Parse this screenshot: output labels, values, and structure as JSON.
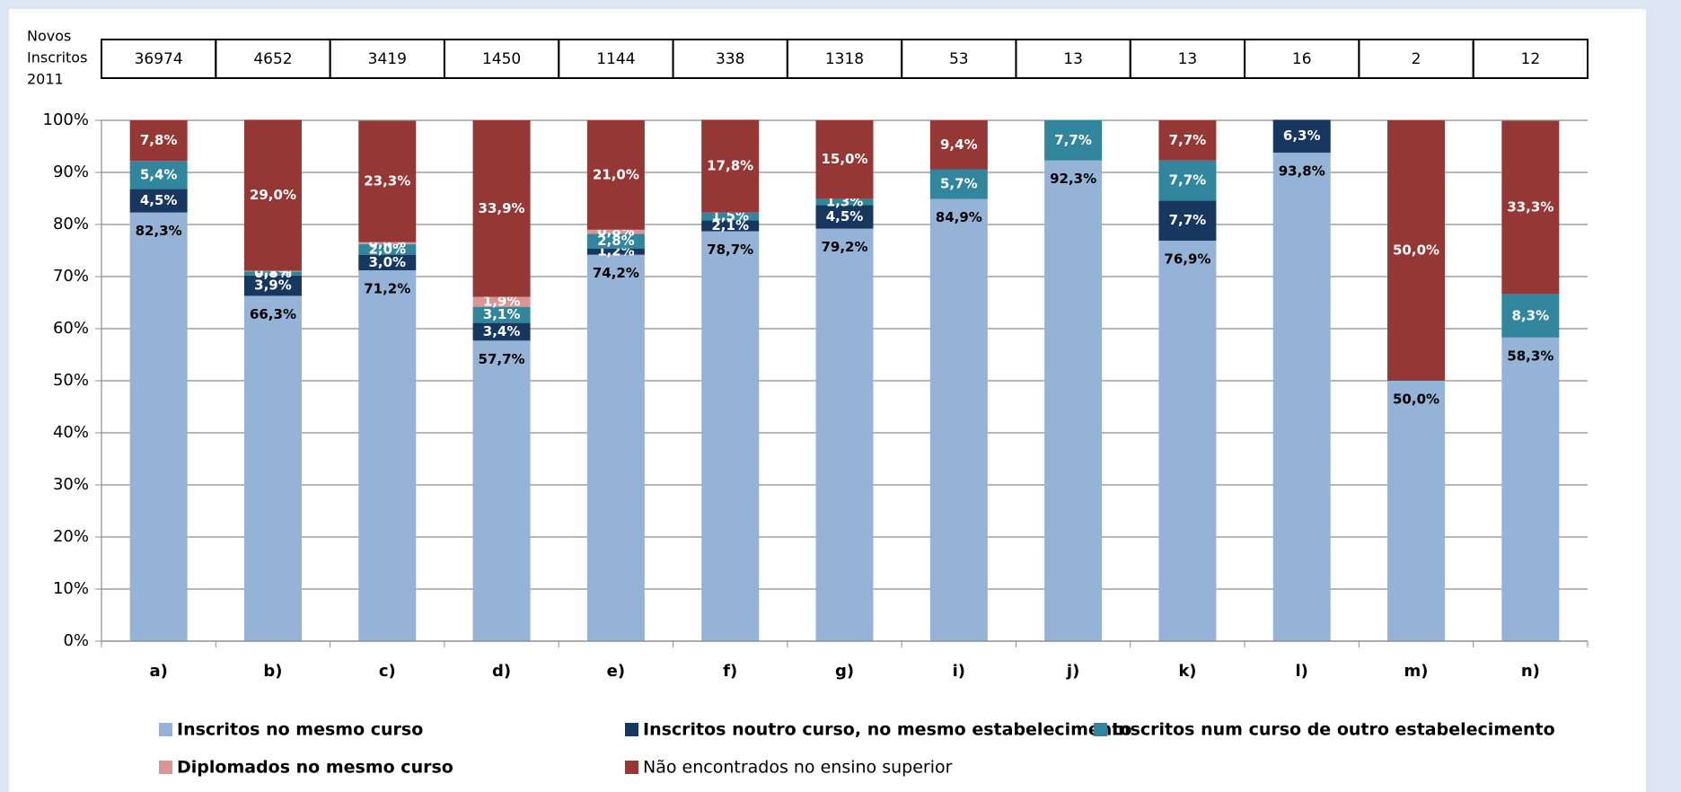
{
  "chart_data": {
    "type": "stacked_bar",
    "row_label": [
      "Novos",
      "Inscritos",
      "2011"
    ],
    "row_values": [
      36974,
      4652,
      3419,
      1450,
      1144,
      338,
      1318,
      53,
      13,
      13,
      16,
      2,
      12
    ],
    "categories": [
      "a)",
      "b)",
      "c)",
      "d)",
      "e)",
      "f)",
      "g)",
      "i)",
      "j)",
      "k)",
      "l)",
      "m)",
      "n)"
    ],
    "ylim": [
      0,
      100
    ],
    "yticks": [
      {
        "value": 0,
        "label": "0%"
      },
      {
        "value": 10,
        "label": "10%"
      },
      {
        "value": 20,
        "label": "20%"
      },
      {
        "value": 30,
        "label": "30%"
      },
      {
        "value": 40,
        "label": "40%"
      },
      {
        "value": 50,
        "label": "50%"
      },
      {
        "value": 60,
        "label": "60%"
      },
      {
        "value": 70,
        "label": "70%"
      },
      {
        "value": 80,
        "label": "80%"
      },
      {
        "value": 90,
        "label": "90%"
      },
      {
        "value": 100,
        "label": "100%"
      }
    ],
    "grid": true,
    "series": [
      {
        "name": "Inscritos no mesmo curso",
        "color": "#95b3d7",
        "values": [
          82.3,
          66.3,
          71.2,
          57.7,
          74.2,
          78.7,
          79.2,
          84.9,
          92.3,
          76.9,
          93.8,
          50.0,
          58.3
        ],
        "value_labels": [
          "82,3%",
          "66,3%",
          "71,2%",
          "57,7%",
          "74,2%",
          "78,7%",
          "79,2%",
          "84,9%",
          "92,3%",
          "76,9%",
          "93,8%",
          "50,0%",
          "58,3%"
        ]
      },
      {
        "name": "Inscritos noutro curso, no mesmo estabelecimento",
        "color": "#17375e",
        "values": [
          4.5,
          3.9,
          3.0,
          3.4,
          1.2,
          2.1,
          4.5,
          null,
          null,
          7.7,
          6.3,
          null,
          null
        ],
        "value_labels": [
          "4,5%",
          "3,9%",
          "3,0%",
          "3,4%",
          "1,2%",
          "2,1%",
          "4,5%",
          null,
          null,
          "7,7%",
          "6,3%",
          null,
          null
        ]
      },
      {
        "name": "Inscritos num curso de outro estabelecimento",
        "color": "#31859c",
        "values": [
          5.4,
          0.8,
          2.0,
          3.1,
          2.8,
          1.5,
          1.3,
          5.7,
          7.7,
          7.7,
          null,
          null,
          8.3
        ],
        "value_labels": [
          "5,4%",
          "0,8%",
          "2,0%",
          "3,1%",
          "2,8%",
          "1,5%",
          "1,3%",
          "5,7%",
          "7,7%",
          "7,7%",
          null,
          null,
          "8,3%"
        ]
      },
      {
        "name": "Diplomados no mesmo curso",
        "color": "#da9694",
        "values": [
          null,
          0.1,
          0.4,
          1.9,
          0.8,
          null,
          null,
          null,
          null,
          null,
          null,
          null,
          null
        ],
        "value_labels": [
          null,
          "0,1%",
          "0,4%",
          "1,9%",
          "0,8%",
          null,
          null,
          null,
          null,
          null,
          null,
          null,
          null
        ]
      },
      {
        "name": "Não encontrados no ensino superior",
        "color": "#953735",
        "values": [
          7.8,
          29.0,
          23.3,
          33.9,
          21.0,
          17.8,
          15.0,
          9.4,
          null,
          7.7,
          null,
          50.0,
          33.3
        ],
        "value_labels": [
          "7,8%",
          "29,0%",
          "23,3%",
          "33,9%",
          "21,0%",
          "17,8%",
          "15,0%",
          "9,4%",
          null,
          "7,7%",
          null,
          "50,0%",
          "33,3%"
        ]
      }
    ]
  }
}
